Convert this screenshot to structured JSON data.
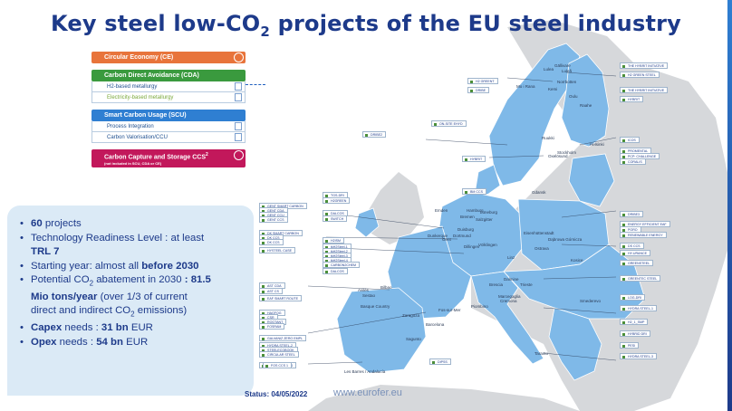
{
  "title": {
    "main": "Key steel low-CO",
    "sub": "2",
    "rest": " projects of the EU steel industry"
  },
  "legend": {
    "ce": "Circular Economy (CE)",
    "cda": "Carbon Direct Avoidance (CDA)",
    "cda_items": [
      "H2-based metallurgy",
      "Electricity-based metallurgy"
    ],
    "scu": "Smart Carbon Usage (SCU)",
    "scu_items": [
      "Process Integration",
      "Carbon Valorisation/CCU"
    ],
    "ccs": "Carbon Capture and Storage CCS",
    "ccs_sup": "2",
    "ccs_note": "(not included in SCU, CDA or CE)"
  },
  "colors": {
    "ce": "#e8743b",
    "cda": "#3a9a3e",
    "scu": "#2f7fd2",
    "ccs": "#c2185b",
    "map_eu": "#7fb9e8",
    "map_non": "#d6d8db",
    "title": "#1d3a8a"
  },
  "info": {
    "b1_bold": "60",
    "b1_rest": " projects",
    "b2": "Technology Readiness Level : at least",
    "b2_bold": "TRL 7",
    "b3_pre": "Starting year: almost all ",
    "b3_bold": "before 2030",
    "b4_pre": "Potential CO",
    "b4_sub": "2",
    "b4_mid": " abatement in 2030 ",
    "b4_bold1": ": 81.5",
    "b4_bold2": "Mio tons/year",
    "b4_rest": " (over 1/3 of current",
    "b4_line3": "direct and indirect CO",
    "b4_sub2": "2",
    "b4_end": " emissions)",
    "b5_bold": "Capex",
    "b5_rest": " needs : ",
    "b5_val": "31 bn",
    "b6_bold": "Opex",
    "b6_rest": " needs : ",
    "b6_val": "54 bn",
    "currency": "EUR"
  },
  "status": "Status: 04/05/2022",
  "website": "www.eurofer.eu",
  "project_tags": [
    "THE HYBRIT INITIATIVE",
    "H2 GREEN STEEL",
    "THE HYBRIT INITIATIVE",
    "HYBRIT",
    "H2 GREENT",
    "DRIBE",
    "ON-SITE EHYD",
    "ICOS",
    "PROMENTAL",
    "PCP: CHALLENGE",
    "CORALIS",
    "HYBRIT",
    "DRIBE2",
    "BM CCS",
    "TGS-DRI",
    "H2GREEN",
    "DALCOS",
    "SWITCH",
    "DRIBE3",
    "ENERGY EFFICIENT EAF",
    "PORO",
    "RENEWABLE ENERGY",
    "DS CCS",
    "HY-URANCE",
    "GREENSTEEL",
    "GENT SMART CARBON",
    "GENT CDA",
    "GENT CCU",
    "GENT CCS",
    "DK SMART CARBON",
    "DK CCS",
    "DK CCS",
    "HYSTEEL CASE",
    "H2ISM",
    "tkH2Steel-1",
    "tkH2Steel-2",
    "tkH2Steel-3",
    "tkH2Steel-4",
    "CARBON2CHEM",
    "DALCOS",
    "GREENTEC STEEL",
    "AST CDA",
    "AST CS",
    "EAF SMART ROUTE",
    "LOG-DRI",
    "HYDRA STEEL-1",
    "H2_1_SMP",
    "HAGFOG",
    "CSR",
    "ROGTANT",
    "FOSRAM",
    "HYBRID DRI",
    "GALVANIZ ZERO EMPL",
    "HYDRA STEEL-2",
    "STEELECOBOOK",
    "CIRCULAR STEEL",
    "PESI",
    "HYDRA STEEL-3",
    "HYDRA STEEL-4",
    "DIPSS",
    "FOS CCS 1"
  ],
  "map_labels": [
    "Lulea",
    "Gällivare",
    "Norrbotten",
    "Mo i Rana",
    "Raahe",
    "Oulu",
    "Kemi",
    "Helsinki",
    "Oxelösund",
    "Stockholm",
    "Ruukki",
    "Luleå",
    "Emden",
    "Hamburg",
    "Salzgitter",
    "Bremen",
    "Gdansk",
    "Duisburg",
    "Dortmund",
    "Eisenhüttenstadt",
    "Dąbrowa Górnicza",
    "Ostrava",
    "Linz",
    "Taranto",
    "Dunkerque",
    "Gent",
    "Fos-sur-Mer",
    "Avilés",
    "Bilbao",
    "Basque Country",
    "Zaragoza",
    "Barcelona",
    "Sestao",
    "Les Barres / Andalucía",
    "Sagunto",
    "Dillingen",
    "Völklingen",
    "Kosice",
    "Smederevo",
    "Piombino",
    "Brescia",
    "Marcegaglia",
    "Cremona",
    "Dalmine",
    "Trieste",
    "Lüneburg"
  ]
}
